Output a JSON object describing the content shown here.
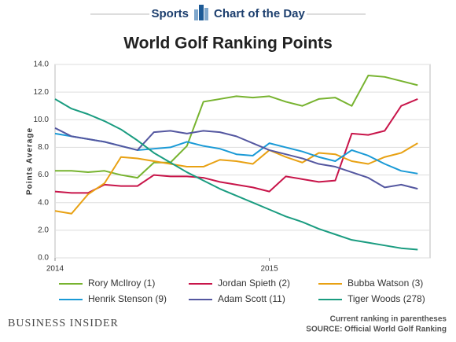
{
  "header": {
    "section": "Sports",
    "feature": "Chart of the Day"
  },
  "chart_data": {
    "type": "line",
    "title": "World Golf Ranking Points",
    "y_label": "Points Average",
    "x": [
      0,
      4,
      8,
      12,
      16,
      20,
      24,
      28,
      32,
      36,
      40,
      44,
      48,
      52,
      56,
      60,
      64,
      68,
      72,
      76,
      80,
      84,
      88
    ],
    "xlim": [
      0,
      91
    ],
    "xticks": [
      {
        "value": 0,
        "label": "2014"
      },
      {
        "value": 52,
        "label": "2015"
      }
    ],
    "ylim": [
      0,
      14
    ],
    "yticks": [
      {
        "value": 0,
        "label": "0.0"
      },
      {
        "value": 2,
        "label": "2.0"
      },
      {
        "value": 4,
        "label": "4.0"
      },
      {
        "value": 6,
        "label": "6.0"
      },
      {
        "value": 8,
        "label": "8.0"
      },
      {
        "value": 10,
        "label": "10.0"
      },
      {
        "value": 12,
        "label": "12.0"
      },
      {
        "value": 14,
        "label": "14.0"
      }
    ],
    "grid": true,
    "series": [
      {
        "name": "Rory McIlroy (1)",
        "color": "#77b32f",
        "values": [
          6.3,
          6.3,
          6.2,
          6.3,
          6.0,
          5.8,
          6.9,
          6.9,
          8.1,
          11.3,
          11.5,
          11.7,
          11.6,
          11.7,
          11.3,
          11.0,
          11.5,
          11.6,
          11.0,
          13.2,
          13.1,
          12.8,
          12.5
        ]
      },
      {
        "name": "Jordan Spieth (2)",
        "color": "#c8154a",
        "values": [
          4.8,
          4.7,
          4.7,
          5.3,
          5.2,
          5.2,
          6.0,
          5.9,
          5.9,
          5.8,
          5.5,
          5.3,
          5.1,
          4.8,
          5.9,
          5.7,
          5.5,
          5.6,
          9.0,
          8.9,
          9.2,
          11.0,
          11.5
        ]
      },
      {
        "name": "Bubba Watson (3)",
        "color": "#e8a113",
        "values": [
          3.4,
          3.2,
          4.6,
          5.4,
          7.3,
          7.2,
          7.0,
          6.8,
          6.6,
          6.6,
          7.1,
          7.0,
          6.8,
          7.8,
          7.3,
          6.9,
          7.6,
          7.5,
          7.0,
          6.8,
          7.3,
          7.6,
          8.3
        ]
      },
      {
        "name": "Henrik Stenson (9)",
        "color": "#1a9ad6",
        "values": [
          9.0,
          8.8,
          8.6,
          8.4,
          8.1,
          7.8,
          7.9,
          8.0,
          8.4,
          8.1,
          7.9,
          7.5,
          7.4,
          8.3,
          8.0,
          7.7,
          7.3,
          7.0,
          7.8,
          7.4,
          6.8,
          6.3,
          6.1
        ]
      },
      {
        "name": "Adam Scott (11)",
        "color": "#5457a0",
        "values": [
          9.4,
          8.8,
          8.6,
          8.4,
          8.1,
          7.8,
          9.1,
          9.2,
          9.0,
          9.2,
          9.1,
          8.8,
          8.3,
          7.8,
          7.5,
          7.2,
          6.8,
          6.6,
          6.2,
          5.8,
          5.1,
          5.3,
          5.0
        ]
      },
      {
        "name": "Tiger Woods (278)",
        "color": "#1a9c80",
        "values": [
          11.5,
          10.8,
          10.4,
          9.9,
          9.3,
          8.5,
          7.6,
          6.9,
          6.2,
          5.6,
          5.0,
          4.5,
          4.0,
          3.5,
          3.0,
          2.6,
          2.1,
          1.7,
          1.3,
          1.1,
          0.9,
          0.7,
          0.6
        ]
      }
    ]
  },
  "footer": {
    "brand": "BUSINESS INSIDER",
    "note": "Current ranking in parentheses",
    "source": "SOURCE: Official World Golf Ranking"
  }
}
